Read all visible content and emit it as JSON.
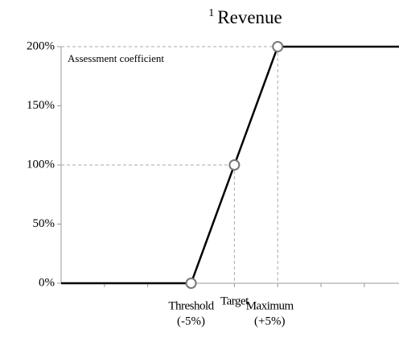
{
  "chart_data": {
    "type": "line",
    "footnote": "1",
    "title": "Revenue",
    "y_label": "Assessment coefficient",
    "x": [
      -20,
      -5,
      0,
      5,
      19
    ],
    "series": [
      {
        "name": "Revenue",
        "color": "#000000",
        "values": [
          0,
          0,
          100,
          200,
          200
        ]
      }
    ],
    "xlim": [
      -20,
      19
    ],
    "xticks": [
      -15,
      -10,
      -5,
      0,
      5,
      10,
      15
    ],
    "ylim": [
      0,
      200
    ],
    "yticks": [
      {
        "value": 0,
        "label": "0%"
      },
      {
        "value": 50,
        "label": "50%"
      },
      {
        "value": 100,
        "label": "100%"
      },
      {
        "value": 150,
        "label": "150%"
      },
      {
        "value": 200,
        "label": "200%"
      }
    ],
    "annotations": [
      {
        "label": "Threshold",
        "sub": "(-5%)"
      },
      {
        "label": "Target"
      },
      {
        "label": "Maximum",
        "sub": "(+5%)"
      }
    ]
  }
}
